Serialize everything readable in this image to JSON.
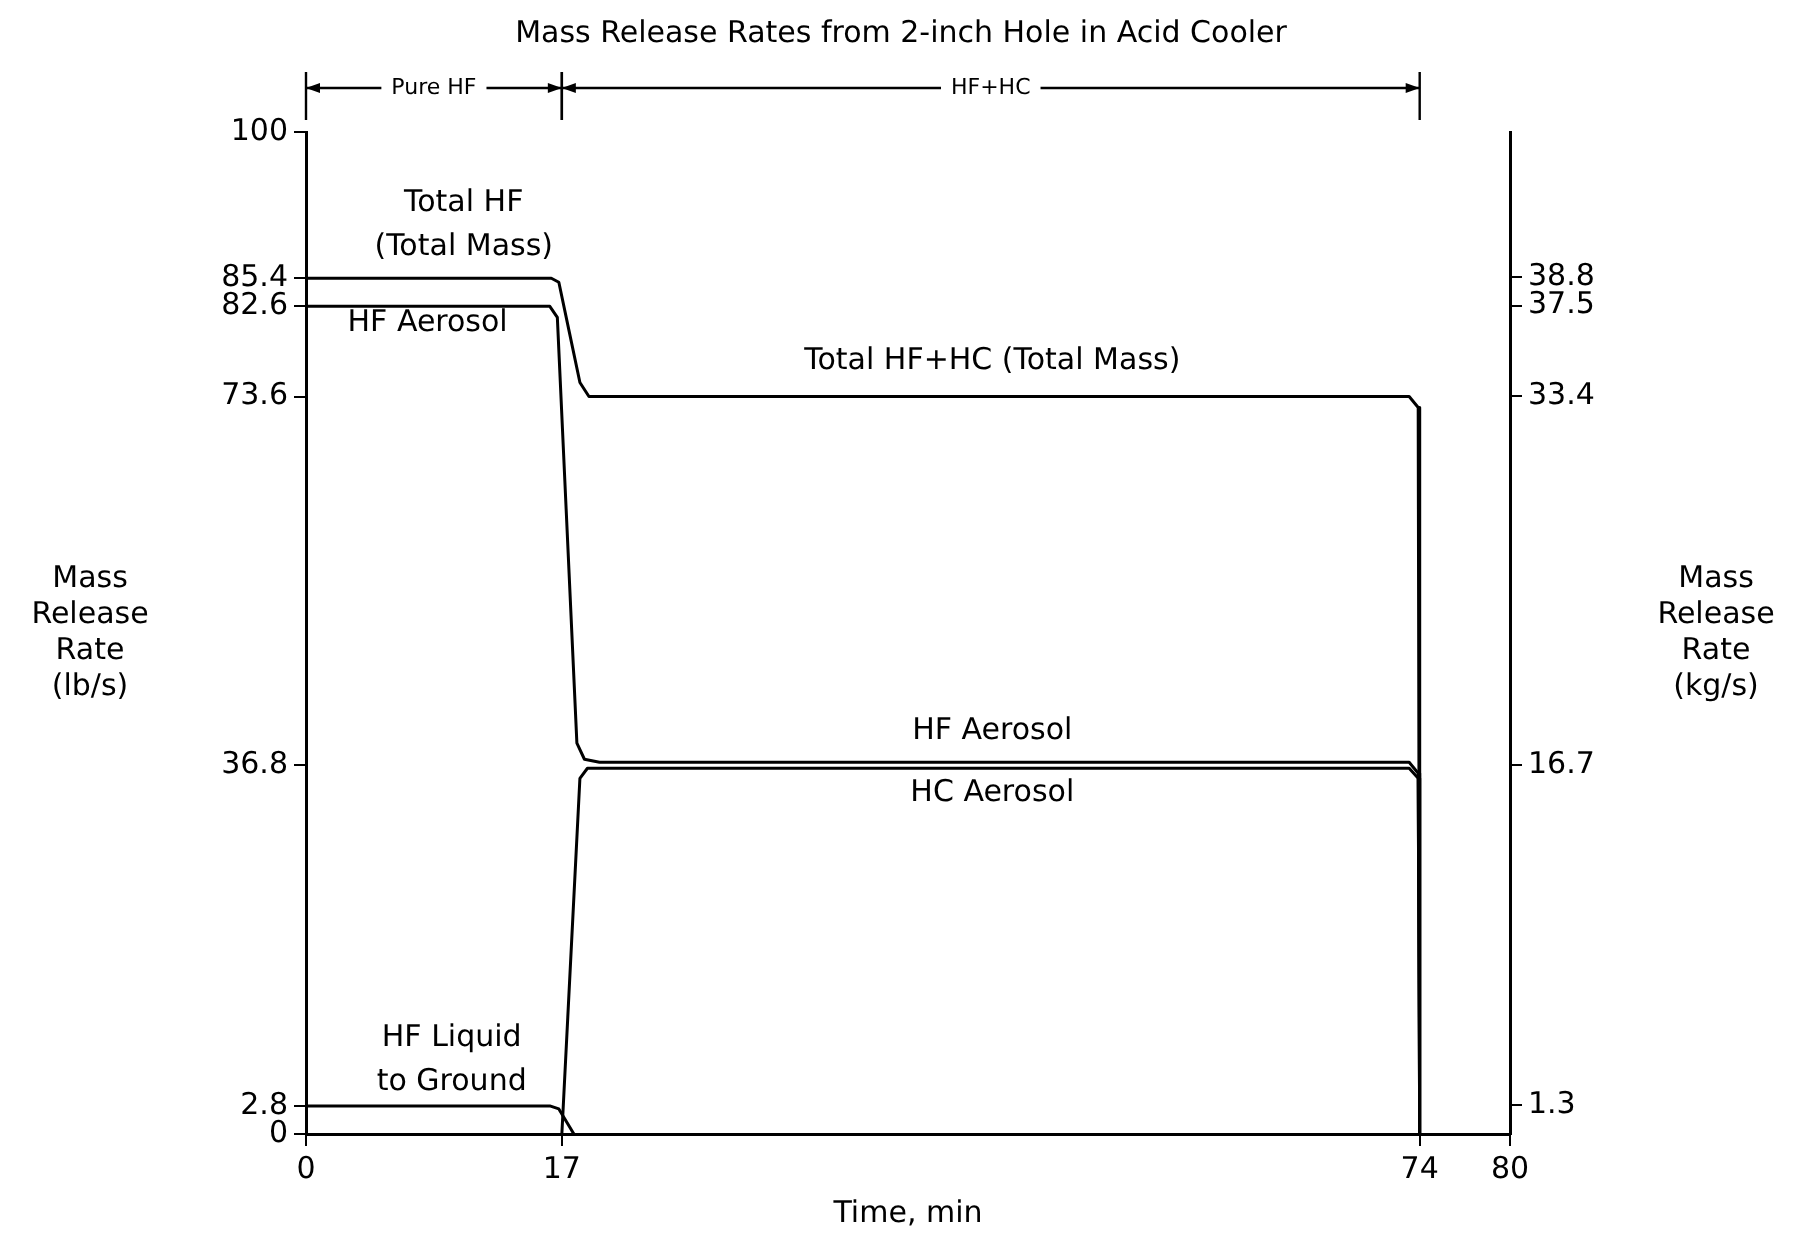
{
  "chart_data": {
    "type": "line",
    "title": "Mass Release Rates from 2-inch Hole in Acid Cooler",
    "xlabel": "Time, min",
    "ylabel": "Mass\nRelease\nRate\n(lb/s)",
    "y2label": "Mass\nRelease\nRate\n(kg/s)",
    "xlim": [
      0,
      80
    ],
    "xticks": [
      0,
      17,
      74,
      80
    ],
    "ylim": [
      0,
      100
    ],
    "yticks": [
      0,
      2.8,
      36.8,
      73.6,
      82.6,
      85.4,
      100
    ],
    "y2lim": [
      0,
      45.36
    ],
    "y2ticks": [
      1.3,
      16.7,
      33.4,
      37.5,
      38.8
    ],
    "grid": false,
    "legend": false,
    "marker": "none",
    "line_style": "solid",
    "series": [
      {
        "color": "#000000",
        "x": [
          0,
          16.3,
          16.8,
          17.5,
          18.2,
          18.8,
          73.3,
          73.9,
          74
        ],
        "values": [
          85.4,
          85.4,
          85.0,
          80,
          75,
          73.6,
          73.6,
          72.5,
          0
        ]
      },
      {
        "color": "#000000",
        "x": [
          0,
          16.2,
          16.7,
          18,
          18.5,
          19.5,
          73.3,
          73.9,
          74
        ],
        "values": [
          82.6,
          82.6,
          81.5,
          39,
          37.4,
          37.1,
          37.1,
          36,
          0
        ]
      },
      {
        "color": "#000000",
        "x": [
          17,
          18.2,
          18.7,
          73.3,
          73.9,
          74
        ],
        "values": [
          0,
          35.5,
          36.5,
          36.5,
          35.5,
          0
        ]
      },
      {
        "color": "#000000",
        "x": [
          0,
          16.2,
          16.8,
          17.8
        ],
        "values": [
          2.8,
          2.8,
          2.5,
          0
        ]
      }
    ],
    "annotations": [
      "Total HF\n(Total Mass)",
      "HF Aerosol",
      "Total HF+HC (Total Mass)",
      "HF Aerosol",
      "HC Aerosol",
      "HF Liquid\nto Ground",
      "Pure HF",
      "HF+HC"
    ]
  }
}
